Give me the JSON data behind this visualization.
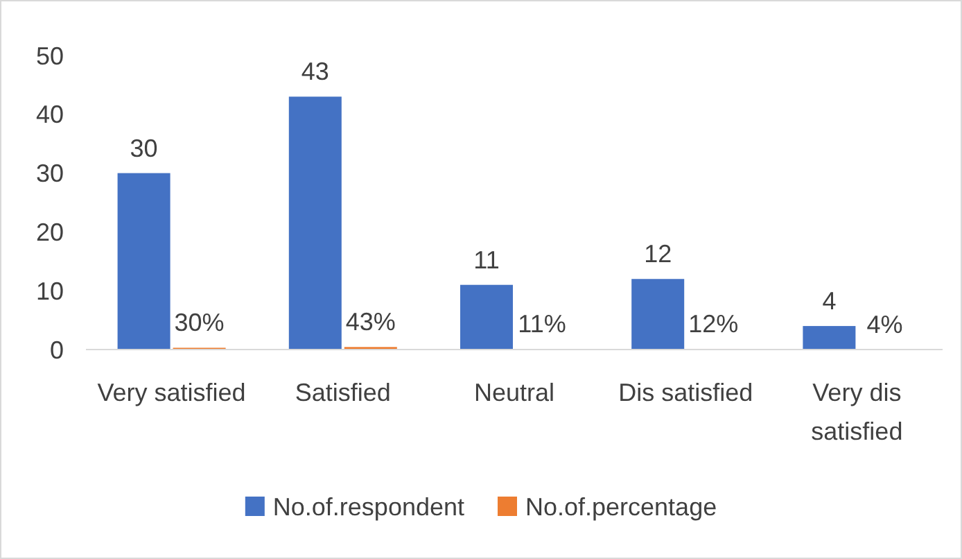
{
  "chart_data": {
    "type": "bar",
    "categories": [
      "Very satisfied",
      "Satisfied",
      "Neutral",
      "Dis satisfied",
      "Very dis satisfied"
    ],
    "series": [
      {
        "name": "No.of.respondent",
        "color": "#4472c4",
        "values": [
          30,
          43,
          11,
          12,
          4
        ],
        "value_labels": [
          "30",
          "43",
          "11",
          "12",
          "4"
        ]
      },
      {
        "name": "No.of.percentage",
        "color": "#ed7d31",
        "values": [
          0.3,
          0.43,
          0.11,
          0.12,
          0.04
        ],
        "value_labels": [
          "30%",
          "43%",
          "11%",
          "12%",
          "4%"
        ]
      }
    ],
    "ylim": [
      0,
      50
    ],
    "yticks": [
      0,
      10,
      20,
      30,
      40,
      50
    ],
    "grid": false,
    "legend": "bottom"
  }
}
